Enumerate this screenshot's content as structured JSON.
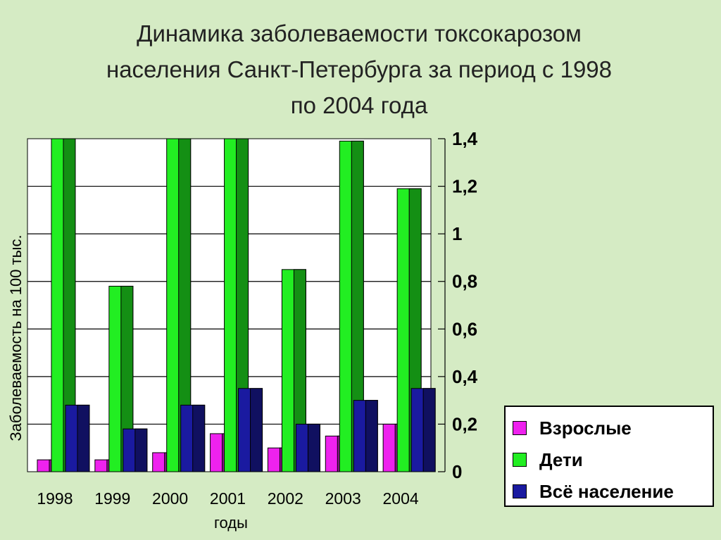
{
  "title_lines": [
    "Динамика заболеваемости токсокарозом",
    "населения Санкт-Петербурга за период с 1998",
    "по 2004 года"
  ],
  "chart_data": {
    "type": "bar",
    "title": "Динамика заболеваемости токсокарозом населения Санкт-Петербурга за период с 1998 по 2004 года",
    "xlabel": "годы",
    "ylabel": "Заболеваемость на 100 тыс.",
    "categories": [
      "1998",
      "1999",
      "2000",
      "2001",
      "2002",
      "2003",
      "2004"
    ],
    "ylim": [
      0,
      1.4
    ],
    "yticks": [
      "0",
      "0,2",
      "0,4",
      "0,6",
      "0,8",
      "1",
      "1,2",
      "1,4"
    ],
    "y_axis_side": "right",
    "grid": true,
    "legend_position": "bottom-right",
    "series": [
      {
        "name": "Взрослые",
        "color": "#ee22ee",
        "values": [
          0.05,
          0.05,
          0.08,
          0.16,
          0.1,
          0.15,
          0.2
        ]
      },
      {
        "name": "Дети",
        "color": "#22ee22",
        "values": [
          1.4,
          0.78,
          1.4,
          1.4,
          0.85,
          1.39,
          1.19
        ]
      },
      {
        "name": "Всё население",
        "color": "#1a1aa0",
        "values": [
          0.28,
          0.18,
          0.28,
          0.35,
          0.2,
          0.3,
          0.35
        ]
      }
    ]
  }
}
